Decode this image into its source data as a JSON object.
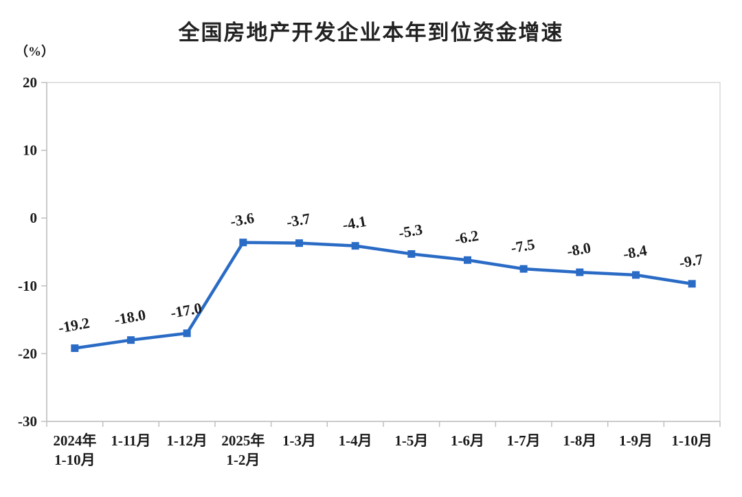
{
  "chart_data": {
    "type": "line",
    "title": "全国房地产开发企业本年到位资金增速",
    "unit_label": "（%）",
    "categories": [
      "2024年\n1-10月",
      "1-11月",
      "1-12月",
      "2025年\n1-2月",
      "1-3月",
      "1-4月",
      "1-5月",
      "1-6月",
      "1-7月",
      "1-8月",
      "1-9月",
      "1-10月"
    ],
    "values": [
      -19.2,
      -18.0,
      -17.0,
      -3.6,
      -3.7,
      -4.1,
      -5.3,
      -6.2,
      -7.5,
      -8.0,
      -8.4,
      -9.7
    ],
    "data_labels": [
      "-19.2",
      "-18.0",
      "-17.0",
      "-3.6",
      "-3.7",
      "-4.1",
      "-5.3",
      "-6.2",
      "-7.5",
      "-8.0",
      "-8.4",
      "-9.7"
    ],
    "y_ticks": [
      20,
      10,
      0,
      -10,
      -20,
      -30
    ],
    "ylim": [
      -30,
      20
    ],
    "xlabel": "",
    "ylabel": "（%）",
    "grid": false,
    "legend": "none",
    "line_color": "#2A6BC5",
    "marker": "square",
    "axis_color": "#BFBFBF",
    "border_color": "#D9D9D9",
    "text_color": "#1A1A1A"
  }
}
